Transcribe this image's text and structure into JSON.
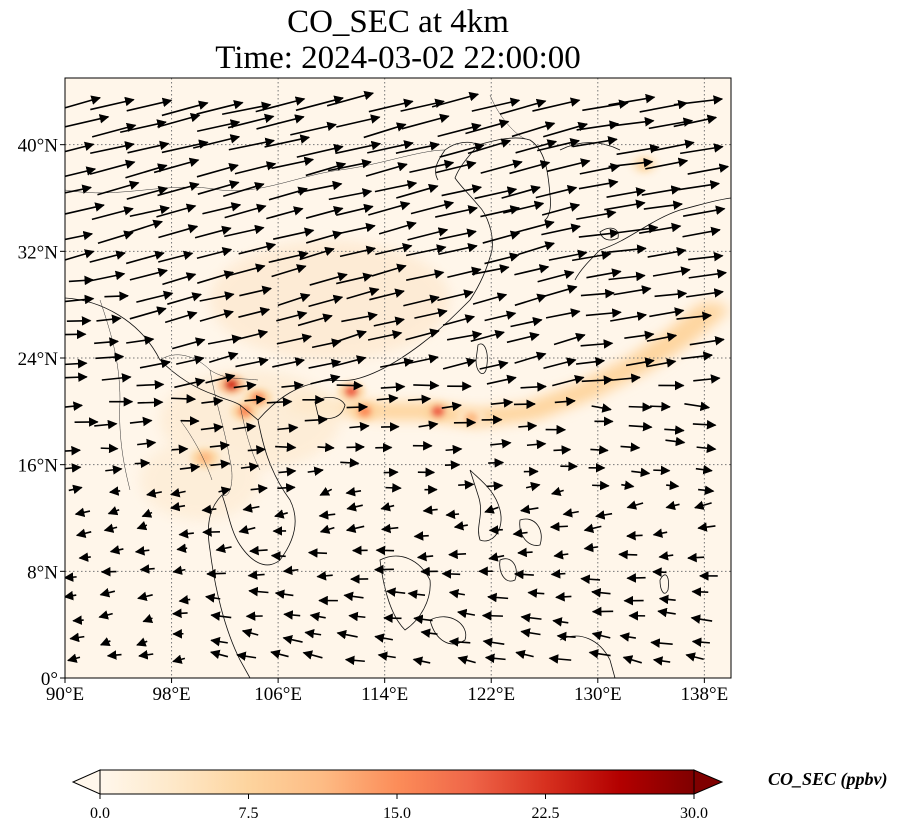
{
  "title": {
    "line1": "CO_SEC at 4km",
    "line2": "Time: 2024-03-02 22:00:00"
  },
  "axes": {
    "lon_range": [
      90,
      140
    ],
    "lat_range": [
      0,
      45
    ],
    "x_ticks": [
      "90°E",
      "98°E",
      "106°E",
      "114°E",
      "122°E",
      "130°E",
      "138°E"
    ],
    "x_tick_values": [
      90,
      98,
      106,
      114,
      122,
      130,
      138
    ],
    "y_ticks": [
      "0°",
      "8°N",
      "16°N",
      "24°N",
      "32°N",
      "40°N"
    ],
    "y_tick_values": [
      0,
      8,
      16,
      24,
      32,
      40
    ],
    "gridlines": "dotted"
  },
  "colorbar": {
    "label": "CO_SEC (ppbv)",
    "ticks": [
      "0.0",
      "7.5",
      "15.0",
      "22.5",
      "30.0"
    ],
    "tick_values": [
      0,
      7.5,
      15,
      22.5,
      30
    ],
    "range": [
      0,
      30
    ],
    "extend": "both",
    "colormap": "OrRd",
    "colors": [
      "#fff7ec",
      "#fee8c8",
      "#fdd49e",
      "#fdbb84",
      "#fc8d59",
      "#ef6548",
      "#d7301f",
      "#b30000",
      "#7f0000"
    ]
  },
  "chart_data": {
    "type": "heatmap",
    "variable": "CO_SEC",
    "units": "ppbv",
    "hotspots": [
      {
        "lon": 102.5,
        "lat": 22.0,
        "value": 24
      },
      {
        "lon": 104.5,
        "lat": 21.0,
        "value": 16
      },
      {
        "lon": 103.5,
        "lat": 20.0,
        "value": 15
      },
      {
        "lon": 100.5,
        "lat": 16.5,
        "value": 13
      },
      {
        "lon": 111.5,
        "lat": 21.5,
        "value": 18
      },
      {
        "lon": 112.5,
        "lat": 20.0,
        "value": 14
      },
      {
        "lon": 118.0,
        "lat": 20.0,
        "value": 18
      },
      {
        "lon": 120.5,
        "lat": 19.5,
        "value": 10
      },
      {
        "lon": 133.5,
        "lat": 38.5,
        "value": 6
      }
    ],
    "plume": [
      [
        108,
        20.5,
        5
      ],
      [
        114,
        20,
        6
      ],
      [
        117,
        20,
        9
      ],
      [
        121,
        19.5,
        8
      ],
      [
        125,
        20,
        7
      ],
      [
        129,
        21.5,
        6
      ],
      [
        133,
        23.5,
        7
      ],
      [
        136,
        25.5,
        7
      ],
      [
        139,
        28,
        9
      ]
    ],
    "wind_field": "quiver, westerly in north, weak easterly in south"
  }
}
